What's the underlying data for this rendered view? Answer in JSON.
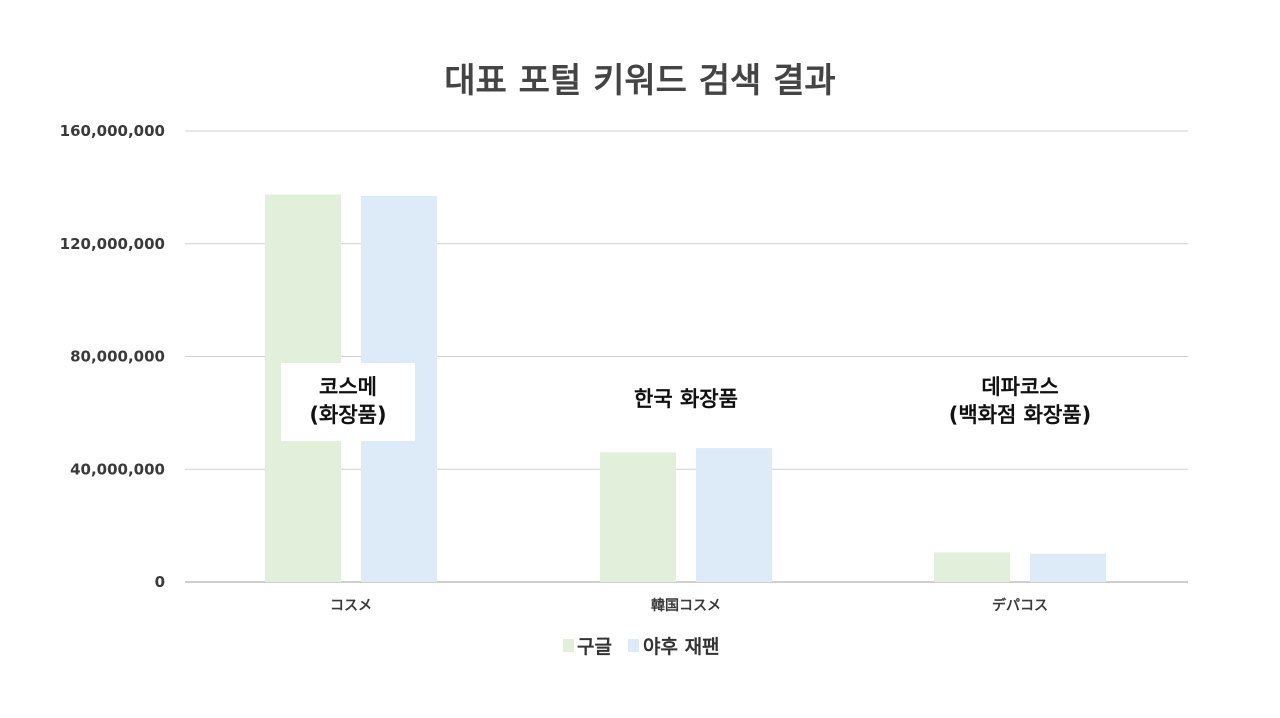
{
  "chart_data": {
    "type": "bar",
    "title": "대표 포털 키워드 검색 결과",
    "xlabel": "",
    "ylabel": "",
    "categories": [
      "コスメ",
      "韓国コスメ",
      "デパコス"
    ],
    "series": [
      {
        "name": "구글",
        "values": [
          137500000,
          46000000,
          10500000
        ],
        "color": "#e2efda"
      },
      {
        "name": "야후 재팬",
        "values": [
          137000000,
          47500000,
          10000000
        ],
        "color": "#ddeaf7"
      }
    ],
    "ylim": [
      0,
      160000000
    ],
    "yticks": [
      0,
      40000000,
      80000000,
      120000000,
      160000000
    ],
    "ytick_labels": [
      "0",
      "40,000,000",
      "80,000,000",
      "120,000,000",
      "160,000,000"
    ],
    "grid": true,
    "legend_position": "bottom-center",
    "annotations": [
      {
        "category": "コスメ",
        "lines": [
          "코스메",
          "(화장품)"
        ],
        "boxed": true
      },
      {
        "category": "韓国コスメ",
        "lines": [
          "한국 화장품"
        ],
        "boxed": false
      },
      {
        "category": "デパコス",
        "lines": [
          "데파코스",
          "(백화점 화장품)"
        ],
        "boxed": false
      }
    ]
  }
}
